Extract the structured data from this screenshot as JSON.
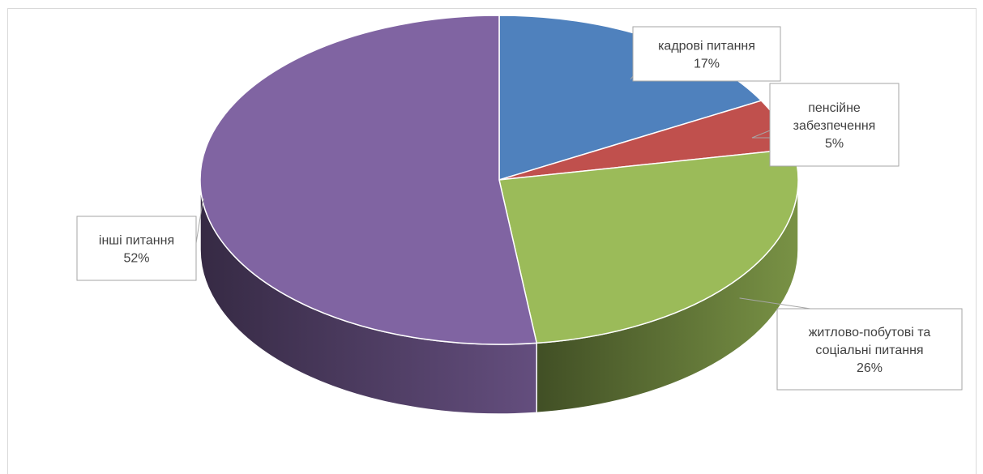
{
  "chart_data": {
    "type": "pie",
    "title": "",
    "slices": [
      {
        "label_lines": [
          "кадрові питання"
        ],
        "value": 17,
        "value_text": "17%",
        "color": "#4F81BD"
      },
      {
        "label_lines": [
          "пенсійне",
          "забезпечення"
        ],
        "value": 5,
        "value_text": "5%",
        "color": "#C0504D"
      },
      {
        "label_lines": [
          "житлово-побутові та",
          "соціальні питання"
        ],
        "value": 26,
        "value_text": "26%",
        "color": "#9BBB59"
      },
      {
        "label_lines": [
          "інші питання"
        ],
        "value": 52,
        "value_text": "52%",
        "color": "#8064A2"
      }
    ]
  }
}
